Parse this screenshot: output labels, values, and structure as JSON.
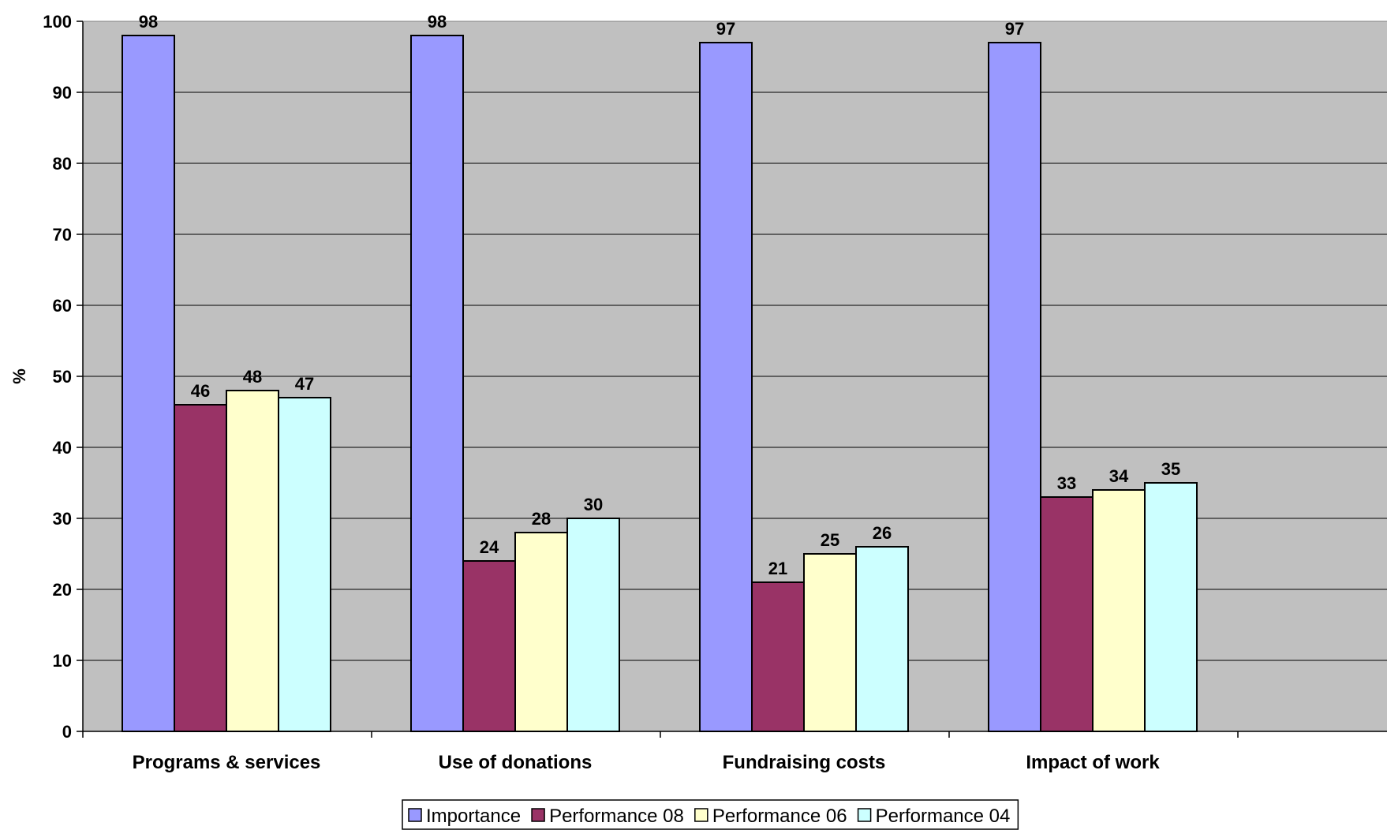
{
  "chart_data": {
    "type": "bar",
    "title": "",
    "xlabel": "",
    "ylabel": "%",
    "ylim": [
      0,
      100
    ],
    "ytick_step": 10,
    "yticks": [
      "0",
      "10",
      "20",
      "30",
      "40",
      "50",
      "60",
      "70",
      "80",
      "90",
      "100"
    ],
    "categories": [
      "Programs & services",
      "Use of donations",
      "Fundraising costs",
      "Impact of work"
    ],
    "series": [
      {
        "name": "Importance",
        "values": [
          98,
          98,
          97,
          97
        ],
        "color": "#9999FF"
      },
      {
        "name": "Performance 08",
        "values": [
          46,
          24,
          21,
          33
        ],
        "color": "#993366"
      },
      {
        "name": "Performance 06",
        "values": [
          48,
          28,
          25,
          34
        ],
        "color": "#FFFFCC"
      },
      {
        "name": "Performance 04",
        "values": [
          47,
          30,
          26,
          35
        ],
        "color": "#CCFFFF"
      }
    ],
    "grid": true,
    "legend_position": "bottom",
    "plot_background": "#C0C0C0",
    "data_labels": true
  }
}
